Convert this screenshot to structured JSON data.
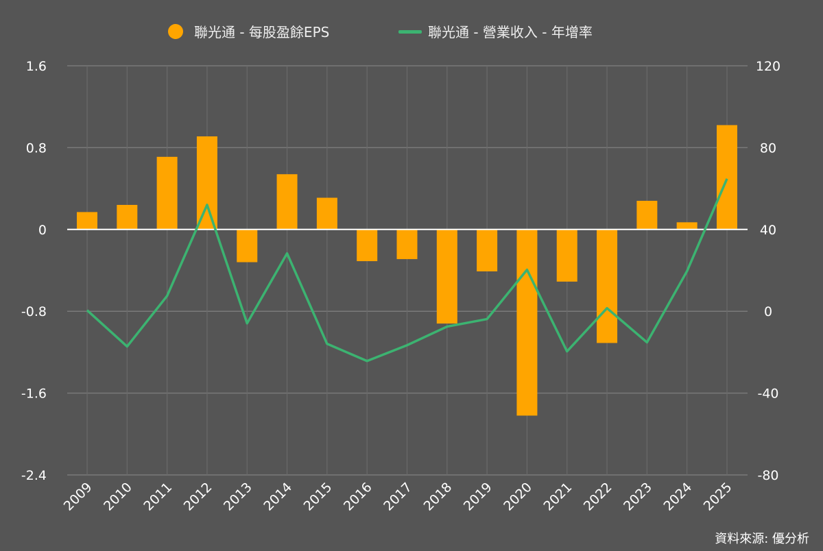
{
  "chart_data": {
    "type": "bar+line",
    "categories": [
      "2009",
      "2010",
      "2011",
      "2012",
      "2013",
      "2014",
      "2015",
      "2016",
      "2017",
      "2018",
      "2019",
      "2020",
      "2021",
      "2022",
      "2023",
      "2024",
      "2025"
    ],
    "series": [
      {
        "name": "聯光通 - 每股盈餘EPS",
        "type": "bar",
        "axis": "left",
        "color": "#FFA500",
        "values": [
          0.17,
          0.24,
          0.71,
          0.91,
          -0.32,
          0.54,
          0.31,
          -0.31,
          -0.29,
          -0.92,
          -0.41,
          -1.82,
          -0.51,
          -1.11,
          0.28,
          0.07,
          1.02
        ]
      },
      {
        "name": "聯光通 - 營業收入 - 年增率",
        "type": "line",
        "axis": "right",
        "color": "#3CB371",
        "values": [
          0.5,
          -17.2,
          7.5,
          52,
          -5.9,
          28.3,
          -15.9,
          -24.3,
          -16.6,
          -7.5,
          -3.8,
          20.3,
          -19.6,
          1.5,
          -15.2,
          19.6,
          64.8
        ]
      }
    ],
    "y_left": {
      "range": [
        -2.4,
        1.6
      ],
      "ticks": [
        "1.6",
        "0.8",
        "0",
        "-0.8",
        "-1.6",
        "-2.4"
      ],
      "tick_values": [
        1.6,
        0.8,
        0,
        -0.8,
        -1.6,
        -2.4
      ]
    },
    "y_right": {
      "range": [
        -80,
        120
      ],
      "ticks": [
        "120",
        "80",
        "40",
        "0",
        "-40",
        "-80"
      ]
    },
    "grid": true,
    "legend": "top-center",
    "source": "資料來源: 優分析"
  }
}
